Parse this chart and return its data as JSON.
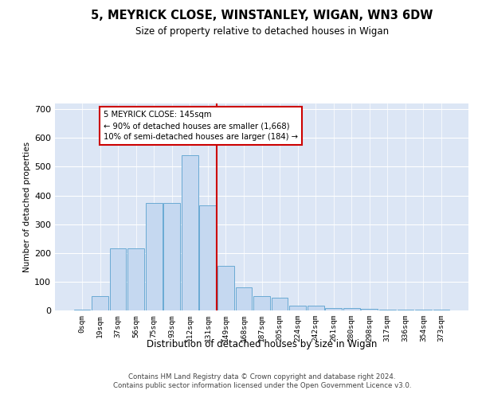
{
  "title": "5, MEYRICK CLOSE, WINSTANLEY, WIGAN, WN3 6DW",
  "subtitle": "Size of property relative to detached houses in Wigan",
  "xlabel": "Distribution of detached houses by size in Wigan",
  "ylabel": "Number of detached properties",
  "bar_labels": [
    "0sqm",
    "19sqm",
    "37sqm",
    "56sqm",
    "75sqm",
    "93sqm",
    "112sqm",
    "131sqm",
    "149sqm",
    "168sqm",
    "187sqm",
    "205sqm",
    "224sqm",
    "242sqm",
    "261sqm",
    "280sqm",
    "298sqm",
    "317sqm",
    "336sqm",
    "354sqm",
    "373sqm"
  ],
  "bar_values": [
    2,
    50,
    215,
    215,
    375,
    375,
    540,
    365,
    155,
    80,
    50,
    45,
    18,
    18,
    8,
    8,
    6,
    4,
    2,
    2,
    2
  ],
  "bar_color": "#c5d8f0",
  "bar_edge_color": "#6aaad4",
  "vline_color": "#cc0000",
  "annotation_text": "5 MEYRICK CLOSE: 145sqm\n← 90% of detached houses are smaller (1,668)\n10% of semi-detached houses are larger (184) →",
  "annotation_box_color": "#ffffff",
  "annotation_box_edge": "#cc0000",
  "ylim": [
    0,
    720
  ],
  "yticks": [
    0,
    100,
    200,
    300,
    400,
    500,
    600,
    700
  ],
  "background_color": "#dce6f5",
  "footer_line1": "Contains HM Land Registry data © Crown copyright and database right 2024.",
  "footer_line2": "Contains public sector information licensed under the Open Government Licence v3.0."
}
